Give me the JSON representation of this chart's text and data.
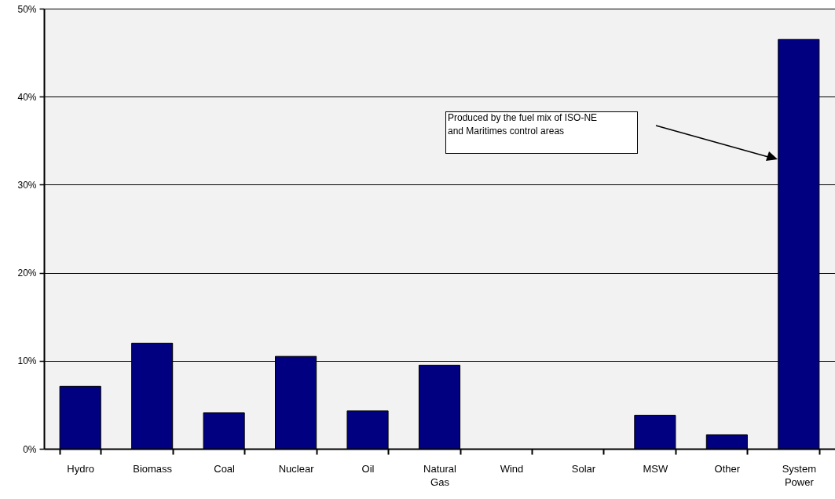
{
  "chart_data": {
    "type": "bar",
    "categories": [
      "Hydro",
      "Biomass",
      "Coal",
      "Nuclear",
      "Oil",
      "Natural Gas",
      "Wind",
      "Solar",
      "MSW",
      "Other",
      "System Power"
    ],
    "values": [
      7.1,
      12.0,
      4.1,
      10.5,
      4.3,
      9.5,
      0,
      0,
      3.8,
      1.6,
      46.5
    ],
    "color": "#000080",
    "ylim": [
      0,
      50
    ],
    "yticks": [
      {
        "value": 0,
        "label": "0%"
      },
      {
        "value": 10,
        "label": "10%"
      },
      {
        "value": 20,
        "label": "20%"
      },
      {
        "value": 30,
        "label": "30%"
      },
      {
        "value": 40,
        "label": "40%"
      },
      {
        "value": 50,
        "label": "50%"
      }
    ],
    "grid": "y",
    "annotations": [
      "Produced by the fuel mix of ISO-NE and Maritimes control areas"
    ]
  }
}
